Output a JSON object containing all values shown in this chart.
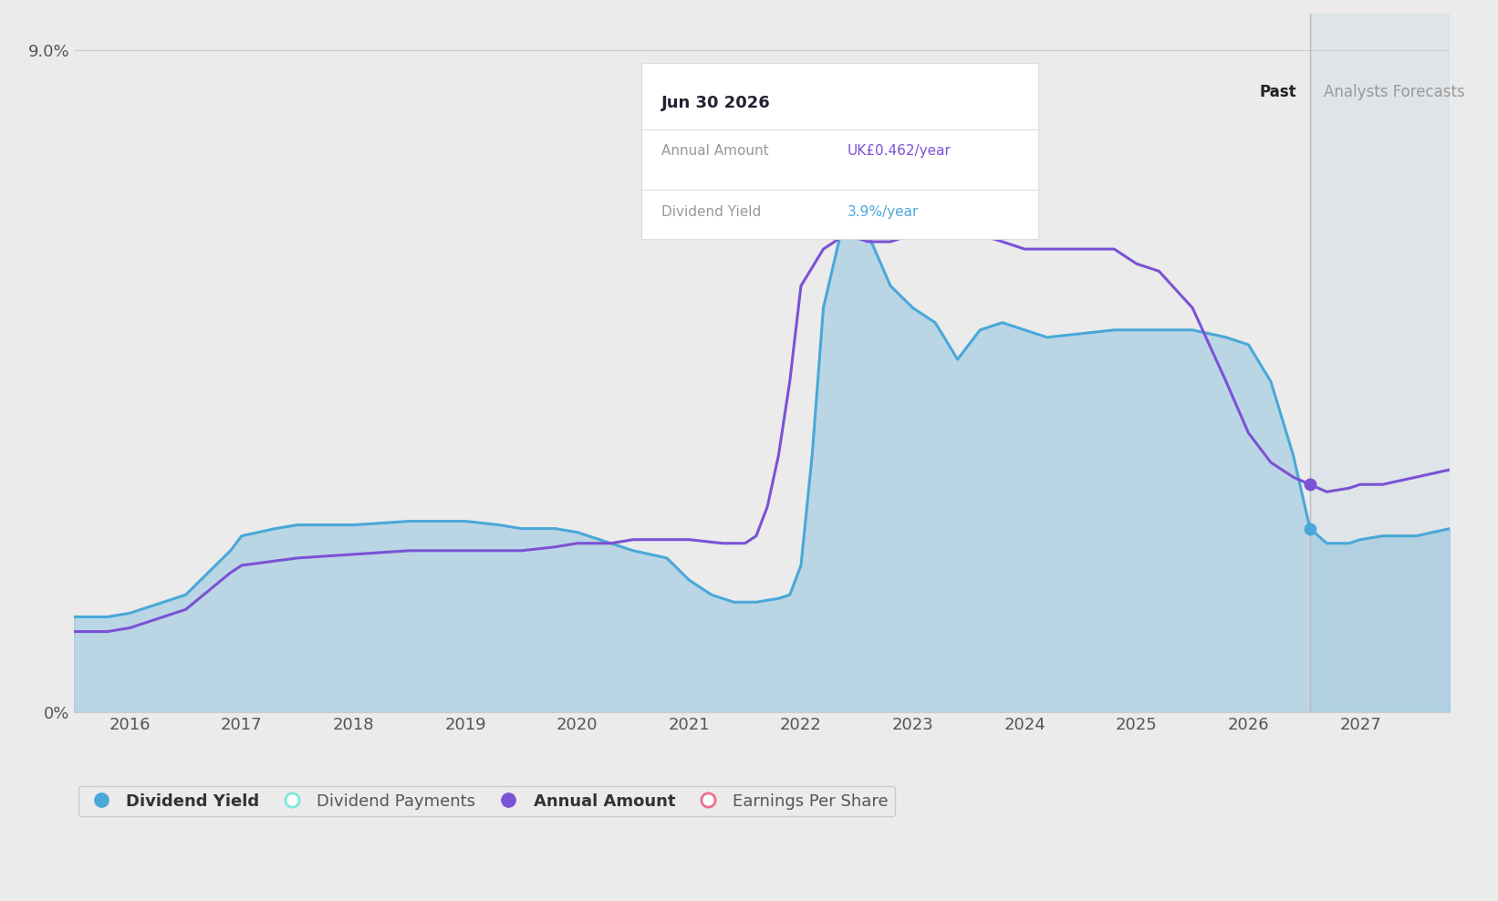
{
  "bg_color": "#ebebeb",
  "divider_x": 2026.55,
  "ylim": [
    0,
    9.5
  ],
  "xlim": [
    2015.5,
    2027.8
  ],
  "yticks": [
    0,
    9.0
  ],
  "ytick_labels": [
    "0%",
    "9.0%"
  ],
  "xticks": [
    2016,
    2017,
    2018,
    2019,
    2020,
    2021,
    2022,
    2023,
    2024,
    2025,
    2026,
    2027
  ],
  "dividend_yield_x": [
    2015.5,
    2015.8,
    2016.0,
    2016.5,
    2016.9,
    2017.0,
    2017.3,
    2017.5,
    2018.0,
    2018.5,
    2019.0,
    2019.3,
    2019.5,
    2019.8,
    2020.0,
    2020.3,
    2020.5,
    2020.8,
    2021.0,
    2021.2,
    2021.4,
    2021.6,
    2021.8,
    2021.9,
    2022.0,
    2022.1,
    2022.2,
    2022.4,
    2022.6,
    2022.8,
    2023.0,
    2023.2,
    2023.4,
    2023.5,
    2023.6,
    2023.8,
    2024.0,
    2024.2,
    2024.5,
    2024.8,
    2025.0,
    2025.2,
    2025.5,
    2025.8,
    2026.0,
    2026.2,
    2026.4,
    2026.55,
    2026.7,
    2026.9,
    2027.0,
    2027.2,
    2027.5,
    2027.8
  ],
  "dividend_yield_y": [
    1.3,
    1.3,
    1.35,
    1.6,
    2.2,
    2.4,
    2.5,
    2.55,
    2.55,
    2.6,
    2.6,
    2.55,
    2.5,
    2.5,
    2.45,
    2.3,
    2.2,
    2.1,
    1.8,
    1.6,
    1.5,
    1.5,
    1.55,
    1.6,
    2.0,
    3.5,
    5.5,
    6.8,
    6.5,
    5.8,
    5.5,
    5.3,
    4.8,
    5.0,
    5.2,
    5.3,
    5.2,
    5.1,
    5.15,
    5.2,
    5.2,
    5.2,
    5.2,
    5.1,
    5.0,
    4.5,
    3.5,
    2.5,
    2.3,
    2.3,
    2.35,
    2.4,
    2.4,
    2.5
  ],
  "annual_amount_x": [
    2015.5,
    2015.8,
    2016.0,
    2016.5,
    2016.9,
    2017.0,
    2017.5,
    2018.0,
    2018.5,
    2019.0,
    2019.3,
    2019.5,
    2019.8,
    2020.0,
    2020.3,
    2020.5,
    2021.0,
    2021.3,
    2021.5,
    2021.6,
    2021.7,
    2021.8,
    2021.9,
    2022.0,
    2022.2,
    2022.4,
    2022.6,
    2022.8,
    2023.0,
    2023.2,
    2023.3,
    2023.4,
    2023.6,
    2023.8,
    2024.0,
    2024.2,
    2024.5,
    2024.8,
    2025.0,
    2025.2,
    2025.5,
    2025.8,
    2026.0,
    2026.2,
    2026.4,
    2026.55,
    2026.7,
    2026.9,
    2027.0,
    2027.2,
    2027.5,
    2027.8
  ],
  "annual_amount_y": [
    1.1,
    1.1,
    1.15,
    1.4,
    1.9,
    2.0,
    2.1,
    2.15,
    2.2,
    2.2,
    2.2,
    2.2,
    2.25,
    2.3,
    2.3,
    2.35,
    2.35,
    2.3,
    2.3,
    2.4,
    2.8,
    3.5,
    4.5,
    5.8,
    6.3,
    6.5,
    6.4,
    6.4,
    6.5,
    6.7,
    6.75,
    6.5,
    6.5,
    6.4,
    6.3,
    6.3,
    6.3,
    6.3,
    6.1,
    6.0,
    5.5,
    4.5,
    3.8,
    3.4,
    3.2,
    3.1,
    3.0,
    3.05,
    3.1,
    3.1,
    3.2,
    3.3
  ],
  "blue_line_color": "#4aa8d8",
  "purple_line_color": "#7b52d4",
  "fill_alpha": 0.3,
  "tooltip_date": "Jun 30 2026",
  "tooltip_annual_label": "Annual Amount",
  "tooltip_annual_value": "UK£0.462/year",
  "tooltip_yield_label": "Dividend Yield",
  "tooltip_yield_value": "3.9%/year",
  "tooltip_annual_color": "#7b52d4",
  "tooltip_yield_color": "#4aa8d8",
  "past_label": "Past",
  "forecast_label": "Analysts Forecasts",
  "legend_items": [
    "Dividend Yield",
    "Dividend Payments",
    "Annual Amount",
    "Earnings Per Share"
  ],
  "legend_colors": [
    "#4aa8d8",
    "#7de8d8",
    "#7b52d4",
    "#e87090"
  ],
  "legend_filled": [
    true,
    false,
    true,
    false
  ]
}
